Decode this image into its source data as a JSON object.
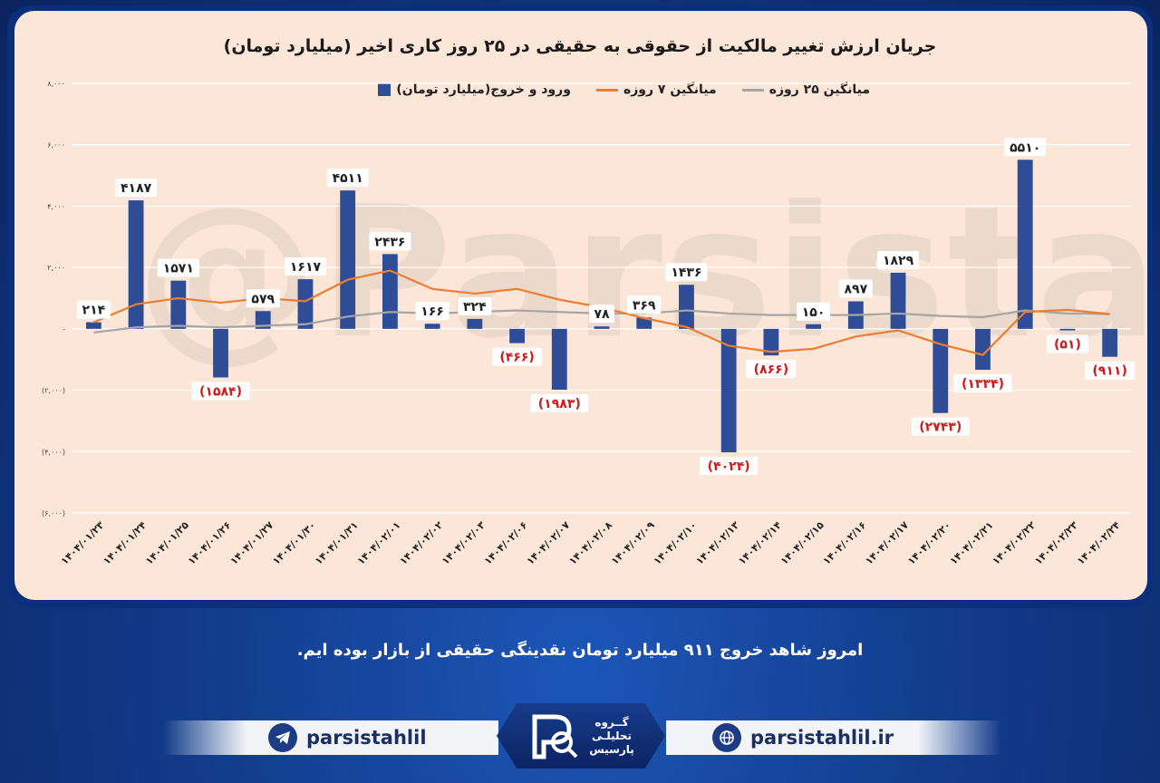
{
  "chart_title": "جریان ارزش تغییر مالکیت از حقوقی به حقیقی در ۲۵ روز کاری اخیر (میلیارد تومان)",
  "watermark": "@Parsistahlil",
  "footer_text": "امروز شاهد خروج ۹۱۱ میلیارد تومان نقدینگی حقیقی از بازار بوده ایم.",
  "social": {
    "telegram": "parsistahlil",
    "website": "parsistahlil.ir"
  },
  "logo": {
    "line1": "گــروه",
    "line2": "تحلیلـی",
    "line3": "پارسیس"
  },
  "colors": {
    "bar": "#2e4d96",
    "ma7": "#ed7d31",
    "ma25": "#a5a5a5",
    "negative_label": "#d11a1a",
    "panel": "#fbe6d7"
  },
  "chart_data": {
    "type": "bar",
    "title": "جریان ارزش تغییر مالکیت از حقوقی به حقیقی در ۲۵ روز کاری اخیر (میلیارد تومان)",
    "categories": [
      "۱۴۰۴/۰۱/۲۳",
      "۱۴۰۴/۰۱/۲۴",
      "۱۴۰۴/۰۱/۲۵",
      "۱۴۰۴/۰۱/۲۶",
      "۱۴۰۴/۰۱/۲۷",
      "۱۴۰۴/۰۱/۳۰",
      "۱۴۰۴/۰۱/۳۱",
      "۱۴۰۴/۰۲/۰۱",
      "۱۴۰۴/۰۲/۰۲",
      "۱۴۰۴/۰۲/۰۳",
      "۱۴۰۴/۰۲/۰۶",
      "۱۴۰۴/۰۲/۰۷",
      "۱۴۰۴/۰۲/۰۸",
      "۱۴۰۴/۰۲/۰۹",
      "۱۴۰۴/۰۲/۱۰",
      "۱۴۰۴/۰۲/۱۳",
      "۱۴۰۴/۰۲/۱۴",
      "۱۴۰۴/۰۲/۱۵",
      "۱۴۰۴/۰۲/۱۶",
      "۱۴۰۴/۰۲/۱۷",
      "۱۴۰۴/۰۲/۲۰",
      "۱۴۰۴/۰۲/۲۱",
      "۱۴۰۴/۰۲/۲۲",
      "۱۴۰۴/۰۲/۲۳",
      "۱۴۰۴/۰۲/۲۴"
    ],
    "series": [
      {
        "name": "ورود و خروج(میلیارد تومان)",
        "type": "bar",
        "values": [
          214,
          4187,
          1571,
          -1584,
          579,
          1617,
          4511,
          2436,
          166,
          324,
          -466,
          -1983,
          78,
          369,
          1436,
          -4024,
          -866,
          150,
          897,
          1829,
          -2743,
          -1334,
          5510,
          -51,
          -911
        ],
        "labels": [
          "۲۱۴",
          "۴۱۸۷",
          "۱۵۷۱",
          "(۱۵۸۴)",
          "۵۷۹",
          "۱۶۱۷",
          "۴۵۱۱",
          "۲۴۳۶",
          "۱۶۶",
          "۳۲۴",
          "(۴۶۶)",
          "(۱۹۸۳)",
          "۷۸",
          "۳۶۹",
          "۱۴۳۶",
          "(۴۰۲۴)",
          "(۸۶۶)",
          "۱۵۰",
          "۸۹۷",
          "۱۸۲۹",
          "(۲۷۴۳)",
          "(۱۳۳۴)",
          "۵۵۱۰",
          "(۵۱)",
          "(۹۱۱)"
        ]
      },
      {
        "name": "میانگین ۷ روزه",
        "type": "line",
        "values": [
          214,
          800,
          1000,
          850,
          1000,
          900,
          1600,
          1900,
          1300,
          1150,
          1300,
          950,
          700,
          350,
          60,
          -550,
          -750,
          -650,
          -250,
          -50,
          -500,
          -850,
          550,
          620,
          480
        ]
      },
      {
        "name": "میانگین ۲۵ روزه",
        "type": "line",
        "values": [
          -120,
          50,
          100,
          50,
          100,
          150,
          400,
          550,
          500,
          550,
          600,
          550,
          500,
          500,
          600,
          500,
          450,
          450,
          450,
          500,
          420,
          380,
          600,
          500,
          480
        ]
      }
    ],
    "ylim": [
      -6000,
      8000
    ],
    "yticks": [
      -6000,
      -4000,
      -2000,
      0,
      2000,
      4000,
      6000,
      8000
    ],
    "ytick_labels": [
      "(۶,۰۰۰)",
      "(۴,۰۰۰)",
      "(۲,۰۰۰)",
      "-",
      "۲,۰۰۰",
      "۴,۰۰۰",
      "۶,۰۰۰",
      "۸,۰۰۰"
    ],
    "grid": true,
    "legend_position": "top"
  }
}
